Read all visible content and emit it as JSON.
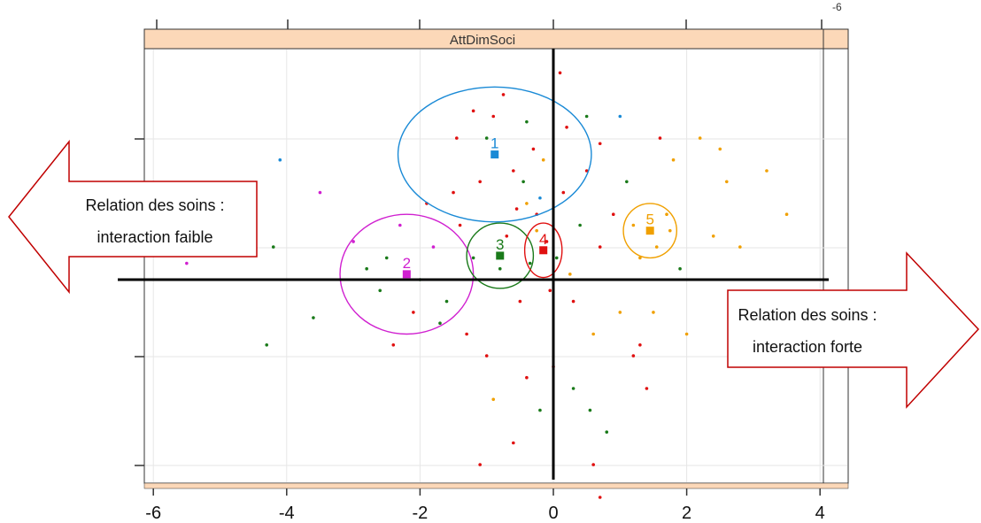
{
  "chart_data": {
    "type": "scatter",
    "panel_title": "AttDimSoci",
    "x_ticks": [
      "-6",
      "-4",
      "-2",
      "0",
      "2",
      "4"
    ],
    "top_tick_label": "-6",
    "xlim": [
      -6,
      4.4
    ],
    "ylim": [
      -2.9,
      2.2
    ],
    "grid": true,
    "clusters": [
      {
        "label": "1",
        "color": "#1a8ad6",
        "center": [
          -0.88,
          1.15
        ],
        "ellipse_r": [
          1.45,
          0.62
        ]
      },
      {
        "label": "2",
        "color": "#d020d0",
        "center": [
          -2.2,
          0.05
        ],
        "ellipse_r": [
          1.0,
          0.55
        ]
      },
      {
        "label": "3",
        "color": "#1a7a1a",
        "center": [
          -0.8,
          0.22
        ],
        "ellipse_r": [
          0.5,
          0.3
        ]
      },
      {
        "label": "4",
        "color": "#e01010",
        "center": [
          -0.15,
          0.27
        ],
        "ellipse_r": [
          0.28,
          0.25
        ]
      },
      {
        "label": "5",
        "color": "#f0a000",
        "center": [
          1.45,
          0.45
        ],
        "ellipse_r": [
          0.4,
          0.25
        ]
      }
    ],
    "points": [
      {
        "x": -5.5,
        "y": 0.15,
        "c": "#d020d0"
      },
      {
        "x": -4.2,
        "y": 0.3,
        "c": "#1a7a1a"
      },
      {
        "x": -4.3,
        "y": -0.6,
        "c": "#1a7a1a"
      },
      {
        "x": -4.1,
        "y": 1.1,
        "c": "#1a8ad6"
      },
      {
        "x": -3.5,
        "y": 0.8,
        "c": "#d020d0"
      },
      {
        "x": -3.6,
        "y": -0.35,
        "c": "#1a7a1a"
      },
      {
        "x": -3.0,
        "y": 0.35,
        "c": "#d020d0"
      },
      {
        "x": -2.8,
        "y": 0.1,
        "c": "#1a7a1a"
      },
      {
        "x": -2.6,
        "y": -0.1,
        "c": "#1a7a1a"
      },
      {
        "x": -2.5,
        "y": 0.2,
        "c": "#1a7a1a"
      },
      {
        "x": -2.3,
        "y": 0.5,
        "c": "#d020d0"
      },
      {
        "x": -2.1,
        "y": -0.3,
        "c": "#e01010"
      },
      {
        "x": -2.0,
        "y": 0.0,
        "c": "#1a7a1a"
      },
      {
        "x": -1.8,
        "y": 0.3,
        "c": "#d020d0"
      },
      {
        "x": -1.6,
        "y": -0.2,
        "c": "#1a7a1a"
      },
      {
        "x": -1.4,
        "y": 0.5,
        "c": "#e01010"
      },
      {
        "x": -1.5,
        "y": 0.8,
        "c": "#e01010"
      },
      {
        "x": -1.3,
        "y": -0.5,
        "c": "#e01010"
      },
      {
        "x": -1.2,
        "y": 0.2,
        "c": "#1a7a1a"
      },
      {
        "x": -1.1,
        "y": 0.9,
        "c": "#e01010"
      },
      {
        "x": -1.0,
        "y": 1.3,
        "c": "#1a7a1a"
      },
      {
        "x": -0.9,
        "y": 1.5,
        "c": "#e01010"
      },
      {
        "x": -0.8,
        "y": 0.1,
        "c": "#1a7a1a"
      },
      {
        "x": -0.7,
        "y": 0.4,
        "c": "#e01010"
      },
      {
        "x": -0.6,
        "y": 1.0,
        "c": "#e01010"
      },
      {
        "x": -0.55,
        "y": 0.65,
        "c": "#e01010"
      },
      {
        "x": -0.5,
        "y": -0.2,
        "c": "#e01010"
      },
      {
        "x": -0.45,
        "y": 0.9,
        "c": "#1a7a1a"
      },
      {
        "x": -0.4,
        "y": 0.7,
        "c": "#f0a000"
      },
      {
        "x": -0.3,
        "y": 1.2,
        "c": "#e01010"
      },
      {
        "x": -0.25,
        "y": 0.6,
        "c": "#e01010"
      },
      {
        "x": -0.2,
        "y": 0.75,
        "c": "#1a8ad6"
      },
      {
        "x": -0.15,
        "y": 1.1,
        "c": "#f0a000"
      },
      {
        "x": -0.1,
        "y": 0.35,
        "c": "#e01010"
      },
      {
        "x": 0.05,
        "y": 0.2,
        "c": "#1a7a1a"
      },
      {
        "x": 0.15,
        "y": 0.8,
        "c": "#e01010"
      },
      {
        "x": 0.2,
        "y": 1.4,
        "c": "#e01010"
      },
      {
        "x": 0.3,
        "y": -0.2,
        "c": "#e01010"
      },
      {
        "x": 0.4,
        "y": 0.5,
        "c": "#1a7a1a"
      },
      {
        "x": 0.5,
        "y": 1.0,
        "c": "#e01010"
      },
      {
        "x": 0.6,
        "y": -0.5,
        "c": "#f0a000"
      },
      {
        "x": 0.7,
        "y": 0.3,
        "c": "#e01010"
      },
      {
        "x": 0.8,
        "y": -1.4,
        "c": "#1a7a1a"
      },
      {
        "x": 0.9,
        "y": 0.6,
        "c": "#e01010"
      },
      {
        "x": 1.0,
        "y": -0.3,
        "c": "#f0a000"
      },
      {
        "x": 1.1,
        "y": 0.9,
        "c": "#1a7a1a"
      },
      {
        "x": 1.2,
        "y": -0.7,
        "c": "#e01010"
      },
      {
        "x": 1.3,
        "y": 0.2,
        "c": "#f0a000"
      },
      {
        "x": 1.5,
        "y": -0.3,
        "c": "#f0a000"
      },
      {
        "x": 1.6,
        "y": 1.3,
        "c": "#e01010"
      },
      {
        "x": 1.7,
        "y": 0.6,
        "c": "#f0a000"
      },
      {
        "x": 1.8,
        "y": 1.1,
        "c": "#f0a000"
      },
      {
        "x": 1.9,
        "y": 0.1,
        "c": "#1a7a1a"
      },
      {
        "x": 2.0,
        "y": -0.5,
        "c": "#f0a000"
      },
      {
        "x": 2.2,
        "y": 1.3,
        "c": "#f0a000"
      },
      {
        "x": 2.4,
        "y": 0.4,
        "c": "#f0a000"
      },
      {
        "x": 2.5,
        "y": 1.2,
        "c": "#f0a000"
      },
      {
        "x": 2.6,
        "y": 0.9,
        "c": "#f0a000"
      },
      {
        "x": 2.8,
        "y": 0.3,
        "c": "#f0a000"
      },
      {
        "x": 3.0,
        "y": -0.4,
        "c": "#f0a000"
      },
      {
        "x": 3.2,
        "y": 1.0,
        "c": "#f0a000"
      },
      {
        "x": 3.5,
        "y": 0.6,
        "c": "#f0a000"
      },
      {
        "x": -0.9,
        "y": -1.1,
        "c": "#f0a000"
      },
      {
        "x": -0.6,
        "y": -1.5,
        "c": "#e01010"
      },
      {
        "x": -0.4,
        "y": -0.9,
        "c": "#e01010"
      },
      {
        "x": -0.2,
        "y": -1.2,
        "c": "#1a7a1a"
      },
      {
        "x": 0.0,
        "y": -0.8,
        "c": "#e01010"
      },
      {
        "x": 0.3,
        "y": -1.0,
        "c": "#1a7a1a"
      },
      {
        "x": 0.6,
        "y": -1.7,
        "c": "#e01010"
      },
      {
        "x": 0.7,
        "y": -2.0,
        "c": "#e01010"
      },
      {
        "x": -1.1,
        "y": -1.7,
        "c": "#e01010"
      },
      {
        "x": -1.0,
        "y": -0.7,
        "c": "#e01010"
      },
      {
        "x": 0.55,
        "y": -1.2,
        "c": "#1a7a1a"
      },
      {
        "x": 1.3,
        "y": -0.6,
        "c": "#e01010"
      },
      {
        "x": 1.4,
        "y": -1.0,
        "c": "#e01010"
      },
      {
        "x": -2.4,
        "y": -0.6,
        "c": "#e01010"
      },
      {
        "x": -1.9,
        "y": 0.7,
        "c": "#e01010"
      },
      {
        "x": -1.7,
        "y": -0.4,
        "c": "#1a7a1a"
      },
      {
        "x": -1.45,
        "y": 1.3,
        "c": "#e01010"
      },
      {
        "x": -1.2,
        "y": 1.55,
        "c": "#e01010"
      },
      {
        "x": -0.75,
        "y": 1.7,
        "c": "#e01010"
      },
      {
        "x": -0.4,
        "y": 1.45,
        "c": "#1a7a1a"
      },
      {
        "x": 0.1,
        "y": 1.9,
        "c": "#e01010"
      },
      {
        "x": 0.5,
        "y": 1.5,
        "c": "#1a7a1a"
      },
      {
        "x": 0.7,
        "y": 1.25,
        "c": "#e01010"
      },
      {
        "x": 1.0,
        "y": 1.5,
        "c": "#1a8ad6"
      },
      {
        "x": -0.25,
        "y": 0.45,
        "c": "#f0a000"
      },
      {
        "x": -0.35,
        "y": 0.15,
        "c": "#1a7a1a"
      },
      {
        "x": 0.25,
        "y": 0.05,
        "c": "#f0a000"
      },
      {
        "x": -0.05,
        "y": -0.1,
        "c": "#e01010"
      },
      {
        "x": 1.2,
        "y": 0.5,
        "c": "#f0a000"
      },
      {
        "x": 1.55,
        "y": 0.3,
        "c": "#f0a000"
      },
      {
        "x": 1.75,
        "y": 0.45,
        "c": "#f0a000"
      }
    ]
  },
  "annotations": {
    "left_arrow_line1": "Relation des soins :",
    "left_arrow_line2": "interaction faible",
    "right_arrow_line1": "Relation des soins :",
    "right_arrow_line2": "interaction forte"
  }
}
